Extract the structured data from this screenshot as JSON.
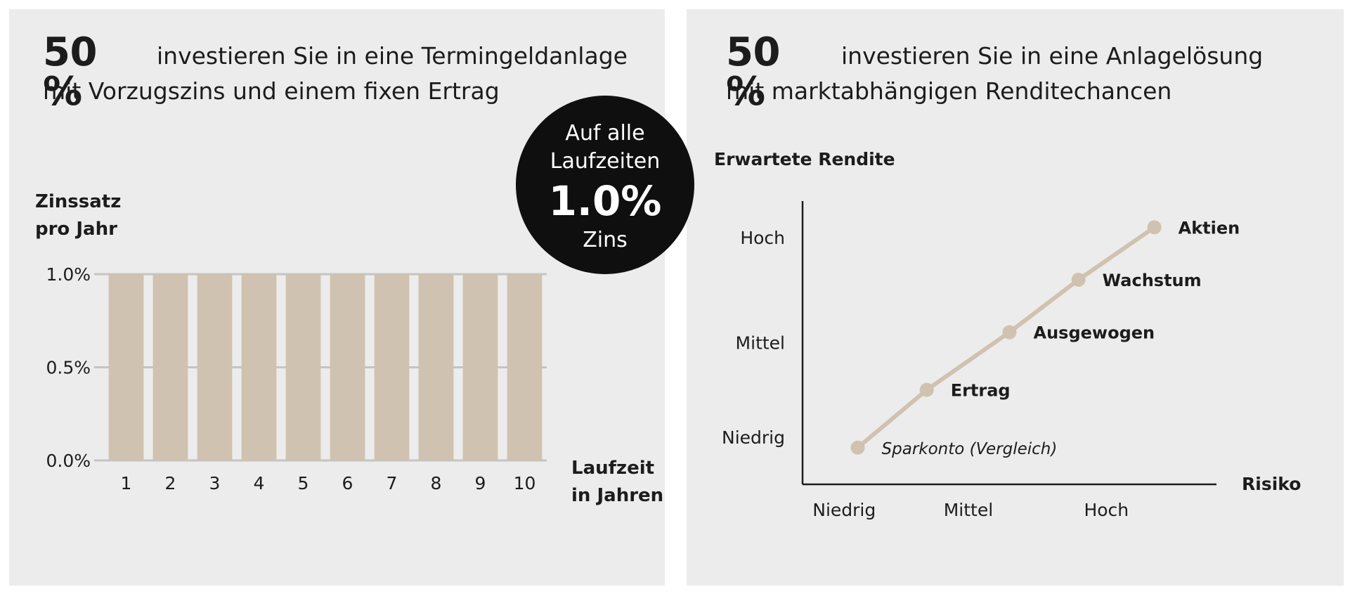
{
  "left": {
    "percent": "50 %",
    "line1": "investieren Sie in eine Termingeldanlage",
    "line2": "mit Vorzugszins und einem fixen Ertrag"
  },
  "right": {
    "percent": "50 %",
    "line1": "investieren Sie in eine Anlagelösung",
    "line2": "mit marktabhängigen Renditechancen"
  },
  "badge": {
    "line1": "Auf alle",
    "line2": "Laufzeiten",
    "value": "1.0%",
    "line3": "Zins"
  },
  "chart_data": [
    {
      "type": "bar",
      "ylabel": [
        "Zinssatz",
        "pro Jahr"
      ],
      "xlabel": [
        "Laufzeit",
        "in Jahren"
      ],
      "categories": [
        "1",
        "2",
        "3",
        "4",
        "5",
        "6",
        "7",
        "8",
        "9",
        "10"
      ],
      "values": [
        1.0,
        1.0,
        1.0,
        1.0,
        1.0,
        1.0,
        1.0,
        1.0,
        1.0,
        1.0
      ],
      "ylim": [
        0,
        1.0
      ],
      "yticks": [
        {
          "value": 0.0,
          "label": "0.0%"
        },
        {
          "value": 0.5,
          "label": "0.5%"
        },
        {
          "value": 1.0,
          "label": "1.0%"
        }
      ],
      "grid": true,
      "bar_color": "#d0c2b0",
      "grid_color": "#c4c4c4"
    },
    {
      "type": "line",
      "ylabel": "Erwartete Rendite",
      "xlabel": "Risiko",
      "xcategories": [
        "Niedrig",
        "Mittel",
        "Hoch"
      ],
      "ycategories": [
        "Niedrig",
        "Mittel",
        "Hoch"
      ],
      "xlim": [
        0.6,
        3.6
      ],
      "ylim": [
        0.7,
        3.4
      ],
      "points": [
        {
          "label": "Sparkonto (Vergleich)",
          "x": 1.0,
          "y": 1.05,
          "style": "italic"
        },
        {
          "label": "Ertrag",
          "x": 1.5,
          "y": 1.6,
          "style": "bold"
        },
        {
          "label": "Ausgewogen",
          "x": 2.1,
          "y": 2.15,
          "style": "bold"
        },
        {
          "label": "Wachstum",
          "x": 2.6,
          "y": 2.65,
          "style": "bold"
        },
        {
          "label": "Aktien",
          "x": 3.15,
          "y": 3.15,
          "style": "bold"
        }
      ],
      "line_color": "#d0c2b0"
    }
  ]
}
